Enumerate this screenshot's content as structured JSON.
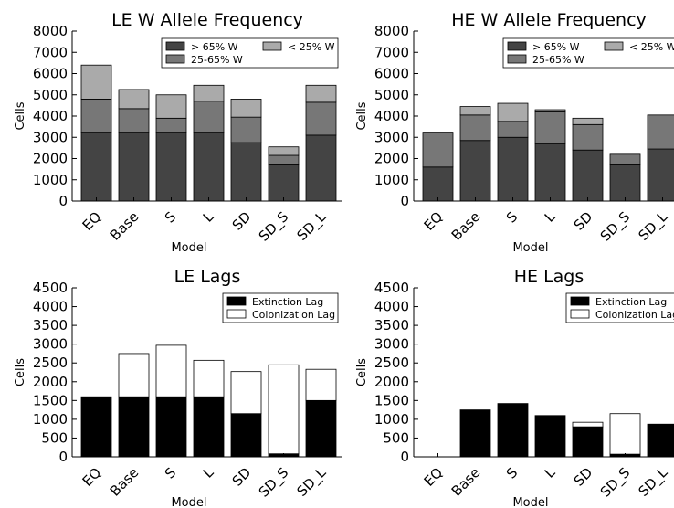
{
  "colors": {
    "dark": "#444444",
    "mid": "#777777",
    "light": "#aaaaaa",
    "black": "#000000",
    "white": "#ffffff"
  },
  "chart_data": [
    {
      "type": "bar",
      "stacked": true,
      "title": "LE W Allele Frequency",
      "xlabel": "Model",
      "ylabel": "Cells",
      "ylim": [
        0,
        8000
      ],
      "yticks": [
        0,
        1000,
        2000,
        3000,
        4000,
        5000,
        6000,
        7000,
        8000
      ],
      "categories": [
        "EQ",
        "Base",
        "S",
        "L",
        "SD",
        "SD_S",
        "SD_L"
      ],
      "legend": "top-right",
      "series": [
        {
          "name": "> 65% W",
          "color": "#444444",
          "values": [
            3200,
            3200,
            3200,
            3200,
            2750,
            1700,
            3100
          ]
        },
        {
          "name": "25-65% W",
          "color": "#777777",
          "values": [
            1600,
            1150,
            700,
            1500,
            1200,
            450,
            1550
          ]
        },
        {
          "name": "< 25% W",
          "color": "#aaaaaa",
          "values": [
            1600,
            900,
            1100,
            750,
            850,
            400,
            800
          ]
        }
      ]
    },
    {
      "type": "bar",
      "stacked": true,
      "title": "HE W Allele Frequency",
      "xlabel": "Model",
      "ylabel": "Cells",
      "ylim": [
        0,
        8000
      ],
      "yticks": [
        0,
        1000,
        2000,
        3000,
        4000,
        5000,
        6000,
        7000,
        8000
      ],
      "categories": [
        "EQ",
        "Base",
        "S",
        "L",
        "SD",
        "SD_S",
        "SD_L"
      ],
      "legend": "top-right",
      "series": [
        {
          "name": "> 65% W",
          "color": "#444444",
          "values": [
            1600,
            2850,
            3000,
            2700,
            2400,
            1700,
            2450
          ]
        },
        {
          "name": "25-65% W",
          "color": "#777777",
          "values": [
            1600,
            1200,
            750,
            1500,
            1200,
            500,
            1600
          ]
        },
        {
          "name": "< 25% W",
          "color": "#aaaaaa",
          "values": [
            0,
            400,
            850,
            100,
            300,
            0,
            0
          ]
        }
      ]
    },
    {
      "type": "bar",
      "stacked": true,
      "title": "LE Lags",
      "xlabel": "Model",
      "ylabel": "Cells",
      "ylim": [
        0,
        4500
      ],
      "yticks": [
        0,
        500,
        1000,
        1500,
        2000,
        2500,
        3000,
        3500,
        4000,
        4500
      ],
      "categories": [
        "EQ",
        "Base",
        "S",
        "L",
        "SD",
        "SD_S",
        "SD_L"
      ],
      "legend": "top-right",
      "series": [
        {
          "name": "Extinction Lag",
          "color": "#000000",
          "values": [
            1600,
            1600,
            1600,
            1600,
            1150,
            80,
            1500
          ]
        },
        {
          "name": "Colonization Lag",
          "color": "#ffffff",
          "values": [
            0,
            1150,
            1370,
            970,
            1120,
            2370,
            830
          ]
        }
      ]
    },
    {
      "type": "bar",
      "stacked": true,
      "title": "HE Lags",
      "xlabel": "Model",
      "ylabel": "Cells",
      "ylim": [
        0,
        4500
      ],
      "yticks": [
        0,
        500,
        1000,
        1500,
        2000,
        2500,
        3000,
        3500,
        4000,
        4500
      ],
      "categories": [
        "EQ",
        "Base",
        "S",
        "L",
        "SD",
        "SD_S",
        "SD_L"
      ],
      "legend": "top-right",
      "series": [
        {
          "name": "Extinction Lag",
          "color": "#000000",
          "values": [
            0,
            1250,
            1420,
            1100,
            800,
            70,
            870
          ]
        },
        {
          "name": "Colonization Lag",
          "color": "#ffffff",
          "values": [
            0,
            0,
            0,
            0,
            120,
            1080,
            0
          ]
        }
      ]
    }
  ]
}
